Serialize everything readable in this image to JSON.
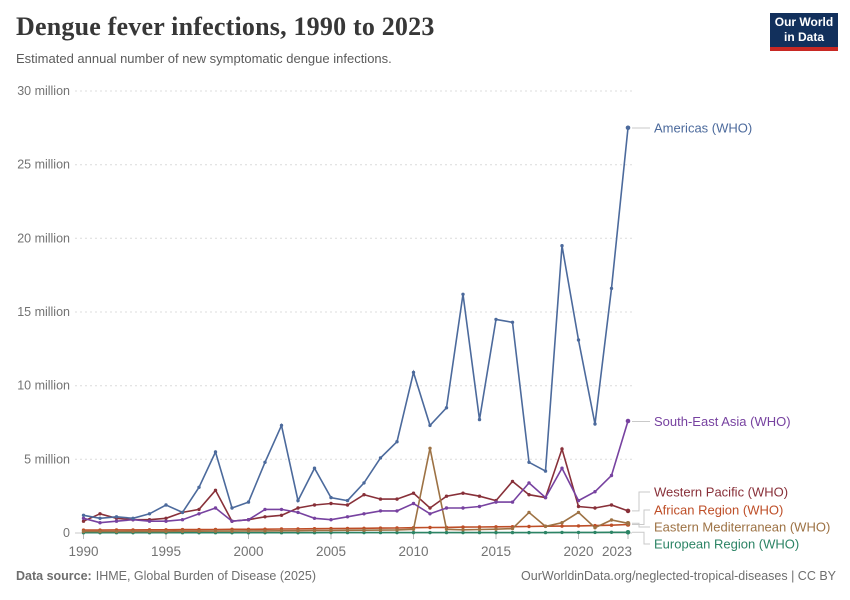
{
  "header": {
    "title": "Dengue fever infections, 1990 to 2023",
    "subtitle": "Estimated annual number of new symptomatic dengue infections.",
    "logo": {
      "line1": "Our World",
      "line2": "in Data",
      "bg_color": "#12305C",
      "bar_color": "#C82823"
    }
  },
  "footer": {
    "source_label": "Data source:",
    "source_text": "IHME, Global Burden of Disease (2025)",
    "credit": "OurWorldinData.org/neglected-tropical-diseases | CC BY"
  },
  "chart_data": {
    "type": "line",
    "title": "Dengue fever infections, 1990 to 2023",
    "subtitle": "Estimated annual number of new symptomatic dengue infections.",
    "unit": "million infections",
    "grid": "horizontal dashed",
    "legend_position": "right-edge series labels",
    "ylim": [
      0,
      30
    ],
    "xticks": [
      1990,
      1995,
      2000,
      2005,
      2010,
      2015,
      2020,
      2023
    ],
    "yticks": [
      {
        "value": 30,
        "label": "30 million"
      },
      {
        "value": 25,
        "label": "25 million"
      },
      {
        "value": 20,
        "label": "20 million"
      },
      {
        "value": 15,
        "label": "15 million"
      },
      {
        "value": 10,
        "label": "10 million"
      },
      {
        "value": 5,
        "label": "5 million"
      },
      {
        "value": 0,
        "label": "0"
      }
    ],
    "x": [
      1990,
      1991,
      1992,
      1993,
      1994,
      1995,
      1996,
      1997,
      1998,
      1999,
      2000,
      2001,
      2002,
      2003,
      2004,
      2005,
      2006,
      2007,
      2008,
      2009,
      2010,
      2011,
      2012,
      2013,
      2014,
      2015,
      2016,
      2017,
      2018,
      2019,
      2020,
      2021,
      2022,
      2023
    ],
    "series": [
      {
        "name": "Americas (WHO)",
        "color": "#4C6A9C",
        "values": [
          1.2,
          1.0,
          1.1,
          1.0,
          1.3,
          1.9,
          1.4,
          3.1,
          5.5,
          1.7,
          2.1,
          4.8,
          7.3,
          2.2,
          4.4,
          2.4,
          2.2,
          3.4,
          5.1,
          6.2,
          10.9,
          7.3,
          8.5,
          16.2,
          7.7,
          14.5,
          14.3,
          4.8,
          4.2,
          19.5,
          13.1,
          7.4,
          16.6,
          27.5
        ]
      },
      {
        "name": "South-East Asia (WHO)",
        "color": "#7742A0",
        "values": [
          1.0,
          0.7,
          0.8,
          0.9,
          0.8,
          0.8,
          0.9,
          1.3,
          1.7,
          0.8,
          0.9,
          1.6,
          1.6,
          1.4,
          1.0,
          0.9,
          1.1,
          1.3,
          1.5,
          1.5,
          2.0,
          1.3,
          1.7,
          1.7,
          1.8,
          2.1,
          2.1,
          3.4,
          2.4,
          4.4,
          2.2,
          2.8,
          3.9,
          7.6
        ]
      },
      {
        "name": "Western Pacific (WHO)",
        "color": "#883039",
        "values": [
          0.8,
          1.3,
          1.0,
          0.9,
          0.9,
          1.0,
          1.4,
          1.6,
          2.9,
          0.8,
          0.9,
          1.1,
          1.2,
          1.7,
          1.9,
          2.0,
          1.9,
          2.6,
          2.3,
          2.3,
          2.7,
          1.7,
          2.5,
          2.7,
          2.5,
          2.2,
          3.5,
          2.6,
          2.4,
          5.7,
          1.8,
          1.7,
          1.9,
          1.5
        ]
      },
      {
        "name": "African Region (WHO)",
        "color": "#BE4E27",
        "values": [
          0.2,
          0.2,
          0.21,
          0.21,
          0.22,
          0.22,
          0.23,
          0.23,
          0.24,
          0.25,
          0.25,
          0.26,
          0.27,
          0.28,
          0.29,
          0.3,
          0.31,
          0.32,
          0.33,
          0.34,
          0.36,
          0.37,
          0.38,
          0.4,
          0.41,
          0.42,
          0.43,
          0.44,
          0.46,
          0.47,
          0.48,
          0.5,
          0.53,
          0.58
        ]
      },
      {
        "name": "Eastern Mediterranean (WHO)",
        "color": "#9D7244",
        "values": [
          0.1,
          0.1,
          0.1,
          0.11,
          0.11,
          0.11,
          0.12,
          0.12,
          0.13,
          0.13,
          0.14,
          0.14,
          0.15,
          0.15,
          0.16,
          0.17,
          0.18,
          0.19,
          0.2,
          0.21,
          0.25,
          5.75,
          0.25,
          0.22,
          0.24,
          0.26,
          0.3,
          1.4,
          0.45,
          0.7,
          1.4,
          0.36,
          0.88,
          0.66
        ]
      },
      {
        "name": "European Region (WHO)",
        "color": "#2C8465",
        "values": [
          0.02,
          0.02,
          0.02,
          0.02,
          0.02,
          0.02,
          0.02,
          0.02,
          0.02,
          0.02,
          0.02,
          0.02,
          0.02,
          0.02,
          0.02,
          0.03,
          0.03,
          0.03,
          0.03,
          0.03,
          0.03,
          0.03,
          0.03,
          0.03,
          0.03,
          0.03,
          0.03,
          0.03,
          0.03,
          0.04,
          0.04,
          0.04,
          0.05,
          0.05
        ]
      }
    ]
  }
}
